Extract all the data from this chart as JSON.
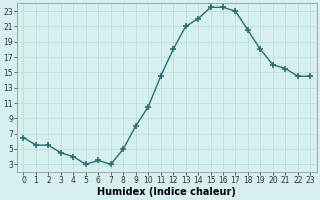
{
  "x": [
    0,
    1,
    2,
    3,
    4,
    5,
    6,
    7,
    8,
    9,
    10,
    11,
    12,
    13,
    14,
    15,
    16,
    17,
    18,
    19,
    20,
    21,
    22,
    23
  ],
  "y": [
    6.5,
    5.5,
    5.5,
    4.5,
    4.0,
    3.0,
    3.5,
    3.0,
    5.0,
    8.0,
    10.5,
    14.5,
    18.0,
    21.0,
    22.0,
    23.5,
    23.5,
    23.0,
    20.5,
    18.0,
    16.0,
    15.5,
    14.5,
    14.5
  ],
  "line_color": "#2a6e6e",
  "marker": "+",
  "marker_size": 4,
  "bg_color": "#d6f0f0",
  "grid_color": "#c0dede",
  "xlabel": "Humidex (Indice chaleur)",
  "xlim": [
    -0.5,
    23.5
  ],
  "ylim": [
    2,
    24
  ],
  "yticks": [
    3,
    5,
    7,
    9,
    11,
    13,
    15,
    17,
    19,
    21,
    23
  ],
  "xticks": [
    0,
    1,
    2,
    3,
    4,
    5,
    6,
    7,
    8,
    9,
    10,
    11,
    12,
    13,
    14,
    15,
    16,
    17,
    18,
    19,
    20,
    21,
    22,
    23
  ],
  "xtick_labels": [
    "0",
    "1",
    "2",
    "3",
    "4",
    "5",
    "6",
    "7",
    "8",
    "9",
    "10",
    "11",
    "12",
    "13",
    "14",
    "15",
    "16",
    "17",
    "18",
    "19",
    "20",
    "21",
    "22",
    "23"
  ],
  "tick_fontsize": 5.5,
  "xlabel_fontsize": 7,
  "line_width": 1.0,
  "marker_color": "#2a6e6e"
}
